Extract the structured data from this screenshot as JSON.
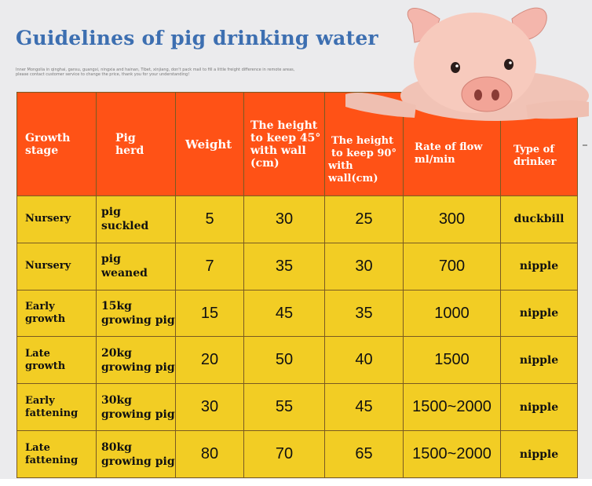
{
  "header": {
    "title": "Guidelines of pig drinking water",
    "note_line1": "Inner Mongolia in qinghai, gansu, guangxi, ningxia and hainan, Tibet, xinjiang, don't pack mail to fill a little freight difference in remote areas,",
    "note_line2": "please contact customer service to change the price, thank you for your understanding!"
  },
  "table": {
    "columns": [
      [
        "Growth",
        "stage"
      ],
      [
        "Pig",
        "herd"
      ],
      [
        "Weight"
      ],
      [
        "The height",
        "to keep 45°",
        "with wall",
        "(cm)"
      ],
      [
        "The height",
        "to keep 90°",
        "with wall(cm)"
      ],
      [
        "Rate of flow",
        "ml/min"
      ],
      [
        "Type of",
        "drinker"
      ]
    ],
    "rows": [
      {
        "stage": [
          "Nursery"
        ],
        "herd": [
          "pig",
          "suckled"
        ],
        "weight": "5",
        "h45": "30",
        "h90": "25",
        "flow": "300",
        "drinker": "duckbill"
      },
      {
        "stage": [
          "Nursery"
        ],
        "herd": [
          "pig",
          "weaned"
        ],
        "weight": "7",
        "h45": "35",
        "h90": "30",
        "flow": "700",
        "drinker": "nipple"
      },
      {
        "stage": [
          "Early",
          "growth"
        ],
        "herd": [
          "15kg",
          "growing pig"
        ],
        "weight": "15",
        "h45": "45",
        "h90": "35",
        "flow": "1000",
        "drinker": "nipple"
      },
      {
        "stage": [
          "Late",
          "growth"
        ],
        "herd": [
          "20kg",
          "growing pig"
        ],
        "weight": "20",
        "h45": "50",
        "h90": "40",
        "flow": "1500",
        "drinker": "nipple"
      },
      {
        "stage": [
          "Early",
          "fattening"
        ],
        "herd": [
          "30kg",
          "growing pig"
        ],
        "weight": "30",
        "h45": "55",
        "h90": "45",
        "flow": "1500~2000",
        "drinker": "nipple"
      },
      {
        "stage": [
          "Late",
          "fattening"
        ],
        "herd": [
          "80kg",
          "growing pig"
        ],
        "weight": "80",
        "h45": "70",
        "h90": "65",
        "flow": "1500~2000",
        "drinker": "nipple"
      }
    ]
  },
  "colors": {
    "title": "#3d6fb1",
    "header_bg": "#ff5216",
    "row_bg": "#f2cd24",
    "page_bg": "#ebebed"
  }
}
